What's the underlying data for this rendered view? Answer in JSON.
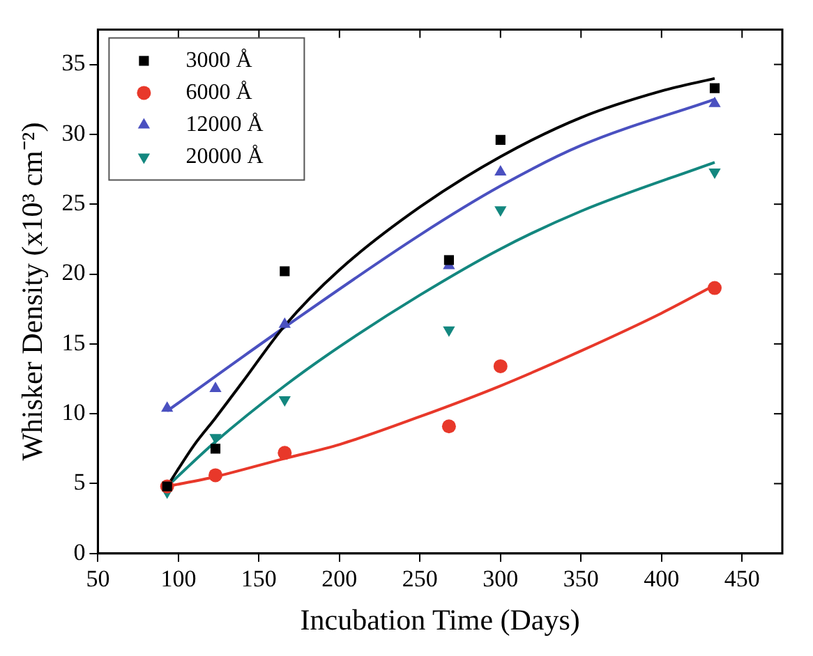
{
  "chart_data": {
    "type": "scatter",
    "xlabel": "Incubation Time (Days)",
    "ylabel": "Whisker Density (x10³ cm⁻²)",
    "xlim": [
      50,
      475
    ],
    "xticks": [
      50,
      100,
      150,
      200,
      250,
      300,
      350,
      400,
      450
    ],
    "ylim": [
      0,
      37.5
    ],
    "yticks": [
      0,
      5,
      10,
      15,
      20,
      25,
      30,
      35
    ],
    "grid": false,
    "legend": "top left",
    "series": [
      {
        "name": "3000 Å",
        "marker": "square",
        "color": "#000000",
        "x": [
          93,
          123,
          166,
          268,
          300,
          433
        ],
        "values": [
          4.8,
          7.5,
          20.2,
          21.0,
          29.6,
          33.3
        ]
      },
      {
        "name": "6000 Å",
        "marker": "circle",
        "color": "#e8382a",
        "x": [
          93,
          123,
          166,
          268,
          300,
          433
        ],
        "values": [
          4.8,
          5.6,
          7.2,
          9.1,
          13.4,
          19.0
        ]
      },
      {
        "name": "12000 Å",
        "marker": "triangle",
        "color": "#4a50c0",
        "x": [
          93,
          123,
          166,
          268,
          300,
          433
        ],
        "values": [
          10.4,
          11.8,
          16.4,
          20.6,
          27.3,
          32.2
        ]
      },
      {
        "name": "20000 Å",
        "marker": "triangle-down",
        "color": "#13877f",
        "x": [
          93,
          123,
          166,
          268,
          300,
          433
        ],
        "values": [
          4.4,
          8.3,
          11.0,
          16.0,
          24.6,
          27.3
        ]
      },
      {
        "type": "line",
        "marker": "none",
        "color": "#000000",
        "x": [
          93,
          110,
          123,
          140,
          166,
          200,
          250,
          300,
          350,
          400,
          433
        ],
        "values": [
          4.8,
          7.8,
          9.7,
          12.3,
          16.3,
          20.3,
          24.8,
          28.4,
          31.2,
          33.1,
          34.0
        ]
      },
      {
        "type": "line",
        "marker": "none",
        "color": "#e8382a",
        "x": [
          93,
          123,
          166,
          200,
          250,
          300,
          350,
          400,
          433
        ],
        "values": [
          4.8,
          5.5,
          6.8,
          7.8,
          9.8,
          12.0,
          14.5,
          17.2,
          19.2
        ]
      },
      {
        "type": "line",
        "marker": "none",
        "color": "#4a50c0",
        "x": [
          93,
          166,
          250,
          300,
          350,
          433
        ],
        "values": [
          10.2,
          16.2,
          22.8,
          26.3,
          29.2,
          32.5
        ]
      },
      {
        "type": "line",
        "marker": "none",
        "color": "#13877f",
        "x": [
          93,
          123,
          166,
          200,
          250,
          300,
          350,
          433
        ],
        "values": [
          4.8,
          8.0,
          12.0,
          14.8,
          18.5,
          21.8,
          24.5,
          28.0
        ]
      }
    ]
  }
}
